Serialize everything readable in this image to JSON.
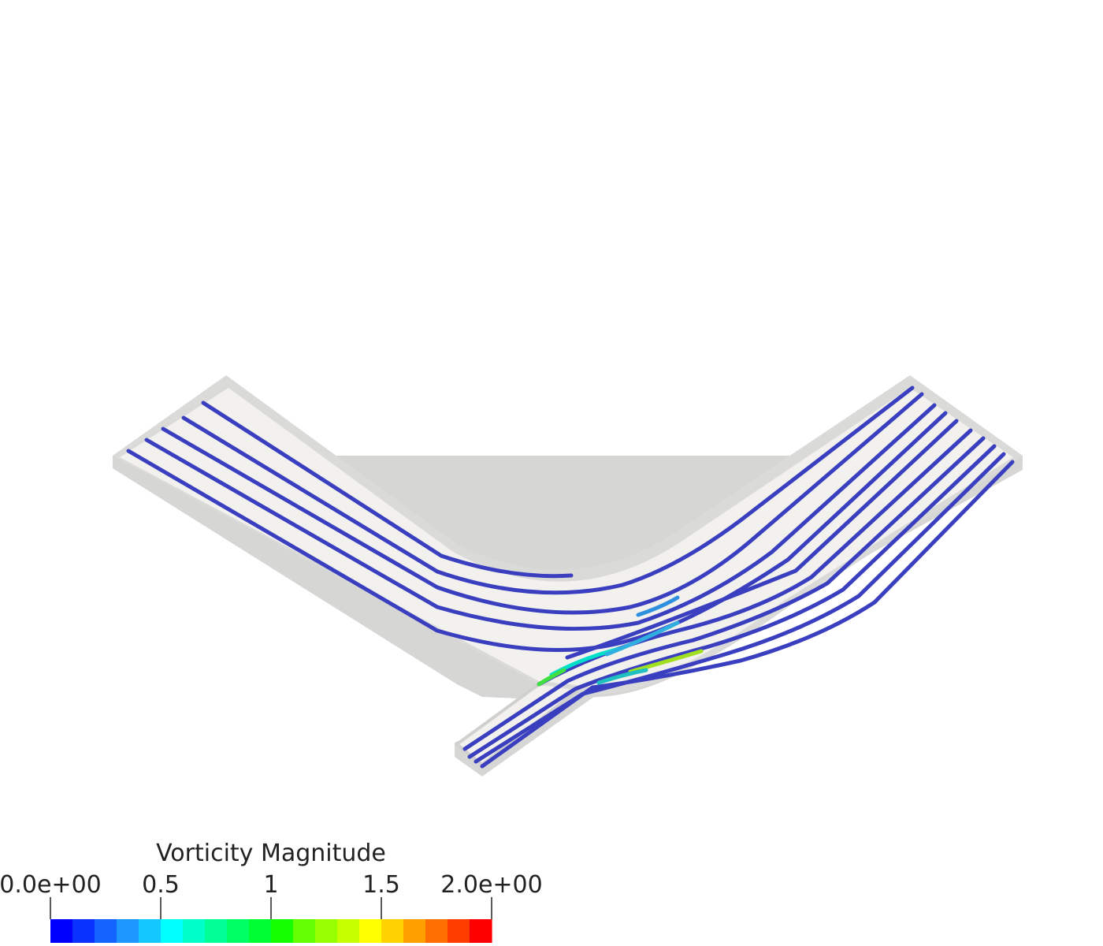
{
  "colorbar": {
    "title": "Vorticity Magnitude",
    "min": 0,
    "max": 2,
    "ticks": [
      {
        "value": 0,
        "label": "0.0e+00"
      },
      {
        "value": 0.5,
        "label": "0.5"
      },
      {
        "value": 1,
        "label": "1"
      },
      {
        "value": 1.5,
        "label": "1.5"
      },
      {
        "value": 2,
        "label": "2.0e+00"
      }
    ],
    "colors": [
      "#0000ff",
      "#0a32ff",
      "#1464ff",
      "#1e96ff",
      "#14c8ff",
      "#00ffff",
      "#00ffc8",
      "#00ff96",
      "#00ff64",
      "#00ff32",
      "#14ff00",
      "#64ff00",
      "#96ff00",
      "#c8ff00",
      "#ffff00",
      "#ffd200",
      "#ffa000",
      "#ff6e00",
      "#ff3c00",
      "#ff0000"
    ]
  },
  "colors": {
    "channel_top": "#f2f1ed",
    "channel_side": "#d8d8d6",
    "streamline": "#3a3fc0"
  }
}
